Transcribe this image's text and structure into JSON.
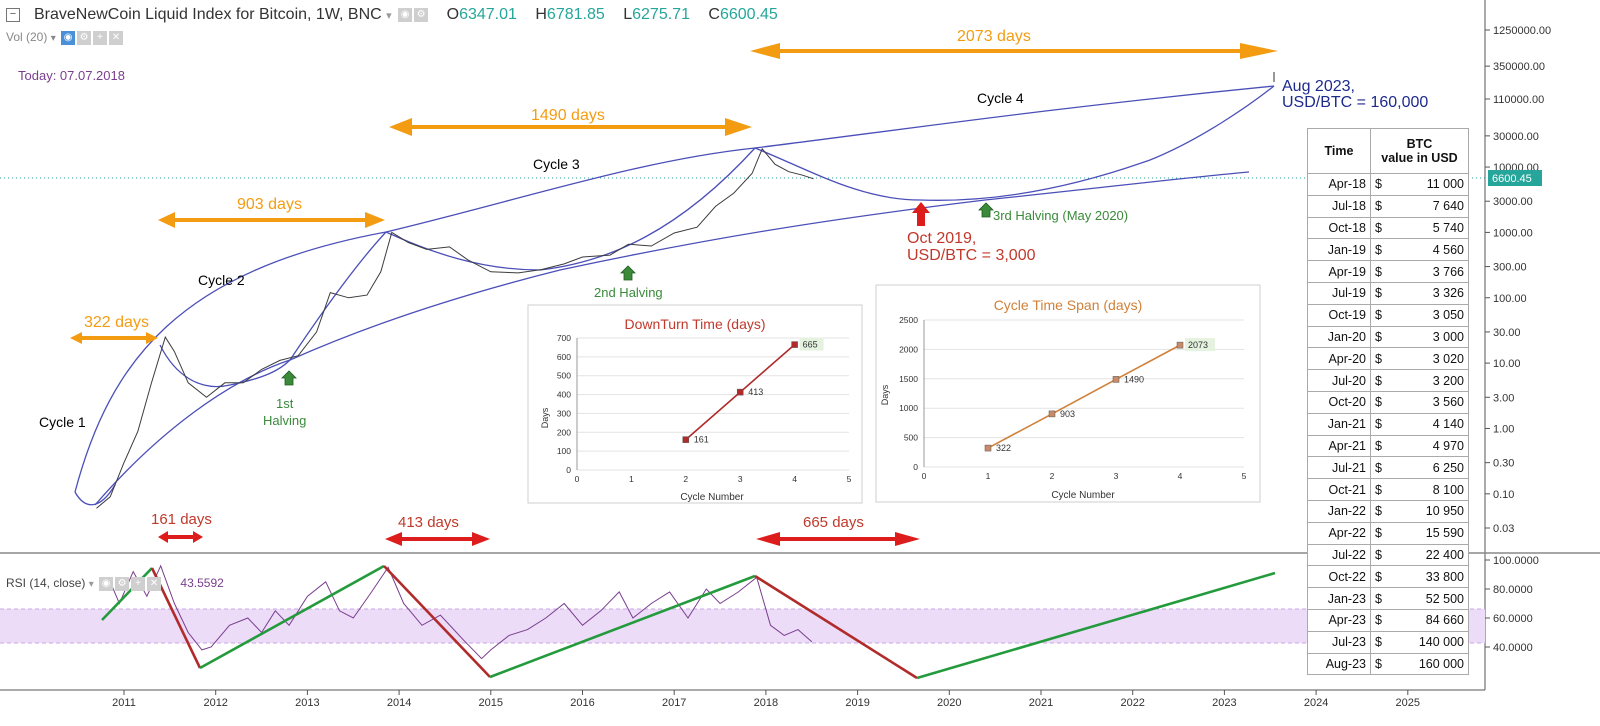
{
  "header": {
    "title": "BraveNewCoin Liquid Index for Bitcoin, 1W, BNC",
    "o_label": "O",
    "o_value": "6347.01",
    "h_label": "H",
    "h_value": "6781.85",
    "l_label": "L",
    "l_value": "6275.71",
    "c_label": "C",
    "c_value": "6600.45",
    "vol_label": "Vol (20)",
    "today": "Today: 07.07.2018",
    "rsi_label": "RSI (14, close)",
    "rsi_value": "43.5592",
    "last_price_tag": "6600.45"
  },
  "colors": {
    "accent": "#26a69a",
    "down": "#cc1d1d",
    "up_line": "#239b3c",
    "curve": "#4b4fb8",
    "orange": "#f39c12",
    "rsi_band": "#ecdcf8"
  },
  "chart_data": [
    {
      "type": "line",
      "title": "BraveNewCoin Liquid Index for Bitcoin, 1W, BNC",
      "yscale": "log",
      "price_axis": [
        "1250000.00",
        "350000.00",
        "110000.00",
        "30000.00",
        "10000.00",
        "3000.00",
        "1000.00",
        "300.00",
        "100.00",
        "30.00",
        "10.00",
        "3.00",
        "1.00",
        "0.30",
        "0.10",
        "0.03"
      ],
      "x_ticks": [
        "2011",
        "2012",
        "2013",
        "2014",
        "2015",
        "2016",
        "2017",
        "2018",
        "2019",
        "2020",
        "2021",
        "2022",
        "2023",
        "2024",
        "2025"
      ],
      "annotations": {
        "spans_top": [
          "322 days",
          "903 days",
          "1490 days",
          "2073 days"
        ],
        "spans_bottom": [
          "161 days",
          "413 days",
          "665 days"
        ],
        "cycles": [
          "Cycle 1",
          "Cycle 2",
          "Cycle 3",
          "Cycle 4"
        ],
        "halvings": [
          "1st Halving",
          "2nd Halving",
          "3rd Halving (May 2020)"
        ],
        "low_text": [
          "Oct 2019,",
          "USD/BTC = 3,000"
        ],
        "high_text": [
          "Aug 2023,",
          "USD/BTC = 160,000"
        ]
      },
      "price_points": [
        [
          "2010.70",
          0.06
        ],
        [
          "2010.85",
          0.09
        ],
        [
          "2011.0",
          0.3
        ],
        [
          "2011.15",
          0.9
        ],
        [
          "2011.3",
          5
        ],
        [
          "2011.45",
          25
        ],
        [
          "2011.55",
          15
        ],
        [
          "2011.7",
          5
        ],
        [
          "2011.9",
          3
        ],
        [
          "2012.1",
          5
        ],
        [
          "2012.3",
          5
        ],
        [
          "2012.5",
          8
        ],
        [
          "2012.7",
          11
        ],
        [
          "2012.9",
          13
        ],
        [
          "2013.1",
          30
        ],
        [
          "2013.25",
          120
        ],
        [
          "2013.45",
          100
        ],
        [
          "2013.65",
          110
        ],
        [
          "2013.8",
          250
        ],
        [
          "2013.92",
          1000
        ],
        [
          "2014.1",
          700
        ],
        [
          "2014.3",
          550
        ],
        [
          "2014.55",
          600
        ],
        [
          "2014.75",
          380
        ],
        [
          "2015.0",
          250
        ],
        [
          "2015.3",
          240
        ],
        [
          "2015.55",
          270
        ],
        [
          "2015.8",
          330
        ],
        [
          "2016.0",
          420
        ],
        [
          "2016.3",
          450
        ],
        [
          "2016.5",
          660
        ],
        [
          "2016.75",
          620
        ],
        [
          "2017.0",
          980
        ],
        [
          "2017.25",
          1200
        ],
        [
          "2017.45",
          2500
        ],
        [
          "2017.65",
          4000
        ],
        [
          "2017.85",
          8000
        ],
        [
          "2017.96",
          19000
        ],
        [
          "2018.1",
          11000
        ],
        [
          "2018.25",
          8500
        ],
        [
          "2018.4",
          7500
        ],
        [
          "2018.52",
          6600
        ]
      ],
      "rsi_points": [
        [
          "2010.85",
          85
        ],
        [
          "2010.95",
          70
        ],
        [
          "2011.1",
          92
        ],
        [
          "2011.25",
          75
        ],
        [
          "2011.4",
          96
        ],
        [
          "2011.55",
          70
        ],
        [
          "2011.7",
          50
        ],
        [
          "2011.85",
          38
        ],
        [
          "2011.95",
          40
        ],
        [
          "2012.15",
          55
        ],
        [
          "2012.35",
          60
        ],
        [
          "2012.5",
          50
        ],
        [
          "2012.65",
          65
        ],
        [
          "2012.8",
          55
        ],
        [
          "2013.0",
          75
        ],
        [
          "2013.2",
          85
        ],
        [
          "2013.35",
          65
        ],
        [
          "2013.5",
          60
        ],
        [
          "2013.7",
          78
        ],
        [
          "2013.88",
          95
        ],
        [
          "2014.05",
          70
        ],
        [
          "2014.25",
          55
        ],
        [
          "2014.45",
          62
        ],
        [
          "2014.7",
          45
        ],
        [
          "2014.9",
          32
        ],
        [
          "2015.0",
          38
        ],
        [
          "2015.2",
          48
        ],
        [
          "2015.4",
          52
        ],
        [
          "2015.6",
          60
        ],
        [
          "2015.8",
          70
        ],
        [
          "2016.0",
          55
        ],
        [
          "2016.2",
          65
        ],
        [
          "2016.4",
          78
        ],
        [
          "2016.55",
          60
        ],
        [
          "2016.75",
          70
        ],
        [
          "2016.95",
          78
        ],
        [
          "2017.15",
          60
        ],
        [
          "2017.35",
          80
        ],
        [
          "2017.5",
          70
        ],
        [
          "2017.7",
          78
        ],
        [
          "2017.9",
          88
        ],
        [
          "2018.05",
          55
        ],
        [
          "2018.2",
          48
        ],
        [
          "2018.35",
          52
        ],
        [
          "2018.5",
          43.6
        ]
      ],
      "rsi_axis": [
        "100.0000",
        "80.0000",
        "60.0000",
        "40.0000"
      ]
    },
    {
      "type": "line",
      "title": "DownTurn Time (days)",
      "xlabel": "Cycle Number",
      "ylabel": "Days",
      "xlim": [
        0,
        5
      ],
      "ylim": [
        0,
        700
      ],
      "x_ticks": [
        "0",
        "1",
        "2",
        "3",
        "4",
        "5"
      ],
      "y_ticks": [
        "0",
        "100",
        "200",
        "300",
        "400",
        "500",
        "600",
        "700"
      ],
      "series": [
        {
          "name": "DownTurn Time",
          "x": [
            2,
            3,
            4
          ],
          "values": [
            161,
            413,
            665
          ],
          "labels": [
            "161",
            "413",
            "665"
          ]
        }
      ]
    },
    {
      "type": "line",
      "title": "Cycle Time Span (days)",
      "xlabel": "Cycle Number",
      "ylabel": "Days",
      "xlim": [
        0,
        5
      ],
      "ylim": [
        0,
        2500
      ],
      "x_ticks": [
        "0",
        "1",
        "2",
        "3",
        "4",
        "5"
      ],
      "y_ticks": [
        "0",
        "500",
        "1000",
        "1500",
        "2000",
        "2500"
      ],
      "series": [
        {
          "name": "Cycle Time Span",
          "x": [
            1,
            2,
            3,
            4
          ],
          "values": [
            322,
            903,
            1490,
            2073
          ],
          "labels": [
            "322",
            "903",
            "1490",
            "2073"
          ]
        }
      ]
    },
    {
      "type": "table",
      "headers": [
        "Time",
        "BTC value in USD"
      ],
      "header_lines": [
        "BTC",
        "value in USD"
      ],
      "currency": "$",
      "rows": [
        [
          "Apr-18",
          "11 000"
        ],
        [
          "Jul-18",
          "7 640"
        ],
        [
          "Oct-18",
          "5 740"
        ],
        [
          "Jan-19",
          "4 560"
        ],
        [
          "Apr-19",
          "3 766"
        ],
        [
          "Jul-19",
          "3 326"
        ],
        [
          "Oct-19",
          "3 050"
        ],
        [
          "Jan-20",
          "3 000"
        ],
        [
          "Apr-20",
          "3 020"
        ],
        [
          "Jul-20",
          "3 200"
        ],
        [
          "Oct-20",
          "3 560"
        ],
        [
          "Jan-21",
          "4 140"
        ],
        [
          "Apr-21",
          "4 970"
        ],
        [
          "Jul-21",
          "6 250"
        ],
        [
          "Oct-21",
          "8 100"
        ],
        [
          "Jan-22",
          "10 950"
        ],
        [
          "Apr-22",
          "15 590"
        ],
        [
          "Jul-22",
          "22 400"
        ],
        [
          "Oct-22",
          "33 800"
        ],
        [
          "Jan-23",
          "52 500"
        ],
        [
          "Apr-23",
          "84 660"
        ],
        [
          "Jul-23",
          "140 000"
        ],
        [
          "Aug-23",
          "160 000"
        ]
      ]
    }
  ]
}
